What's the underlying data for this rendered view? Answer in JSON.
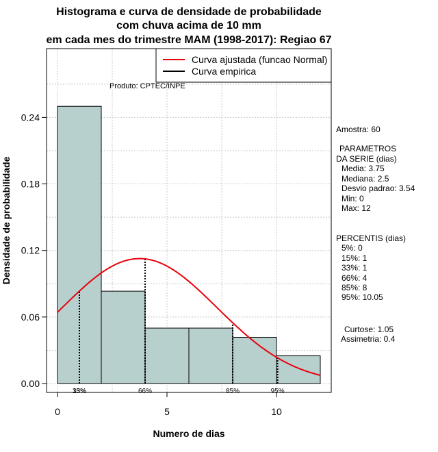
{
  "chart_data": {
    "type": "bar",
    "title": [
      "Histograma e curva de densidade de probabilidade",
      "com chuva acima de 10 mm",
      "em cada mes do trimestre MAM (1998-2017): Regiao 67"
    ],
    "xlabel": "Numero de dias",
    "ylabel": "Densidade de probabilidade",
    "xlim": [
      -0.5,
      12.5
    ],
    "ylim": [
      -0.008,
      0.302
    ],
    "x_ticks": [
      0,
      5,
      10
    ],
    "y_ticks": [
      "0.00",
      "0.06",
      "0.12",
      "0.18",
      "0.24"
    ],
    "bins": [
      {
        "start": 0,
        "end": 2,
        "density": 0.25
      },
      {
        "start": 2,
        "end": 4,
        "density": 0.0833
      },
      {
        "start": 4,
        "end": 6,
        "density": 0.05
      },
      {
        "start": 6,
        "end": 8,
        "density": 0.05
      },
      {
        "start": 8,
        "end": 10,
        "density": 0.0417
      },
      {
        "start": 10,
        "end": 12,
        "density": 0.025
      }
    ],
    "fitted_curve": {
      "distribution": "Normal",
      "mean": 3.75,
      "sd": 3.54,
      "from": 0,
      "to": 12
    },
    "percentile_lines": [
      {
        "x": 1,
        "label": "15%"
      },
      {
        "x": 1,
        "label": "33%"
      },
      {
        "x": 4,
        "label": "66%"
      },
      {
        "x": 8,
        "label": "85%"
      },
      {
        "x": 10.05,
        "label": "95%"
      }
    ],
    "legend": {
      "position": "top-right",
      "entries": [
        {
          "label": "Curva ajustada (funcao Normal)",
          "color": "#e8000b"
        },
        {
          "label": "Curva empirica",
          "color": "#000000"
        }
      ]
    },
    "credit": "Produto: CPTEC/INPE",
    "colors": {
      "bar_fill": "#b7cfcd",
      "curve": "#e8000b",
      "grid": "#c8c8c8"
    }
  },
  "side_panel": {
    "amostra": "Amostra: 60",
    "params_title_1": "PARAMETROS",
    "params_title_2": "DA SERIE (dias)",
    "params": [
      "Media: 3.75",
      "Mediana: 2.5",
      "Desvio padrao: 3.54",
      "Min: 0",
      "Max: 12"
    ],
    "percentis_title": "PERCENTIS (dias)",
    "percentis": [
      "5%: 0",
      "15%: 1",
      "33%: 1",
      "66%: 4",
      "85%: 8",
      "95%: 10.05"
    ],
    "curtose": "Curtose: 1.05",
    "assimetria": "Assimetria: 0.4"
  }
}
